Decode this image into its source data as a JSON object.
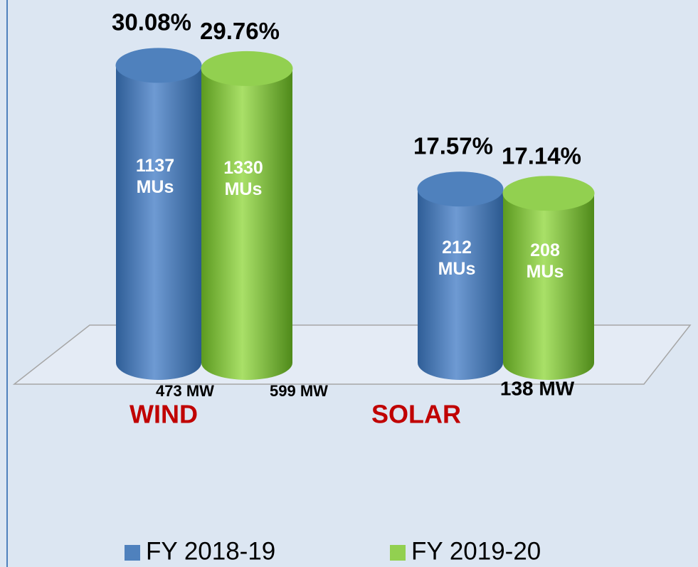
{
  "chart_data": {
    "type": "cylinder",
    "categories": [
      "WIND",
      "SOLAR"
    ],
    "category_color": "#c00000",
    "series": [
      {
        "name": "FY 2018-19",
        "color": "#4f81bd",
        "values": [
          30.08,
          17.57
        ],
        "value_labels": [
          "30.08%",
          "17.57%"
        ],
        "inner_labels": [
          "1137\nMUs",
          "212\nMUs"
        ],
        "mw_labels": [
          "473 MW",
          null
        ]
      },
      {
        "name": "FY 2019-20",
        "color": "#92d050",
        "values": [
          29.76,
          17.14
        ],
        "value_labels": [
          "29.76%",
          "17.14%"
        ],
        "inner_labels": [
          "1330\nMUs",
          "208\nMUs"
        ],
        "mw_labels": [
          "599 MW",
          "138 MW"
        ]
      }
    ]
  }
}
